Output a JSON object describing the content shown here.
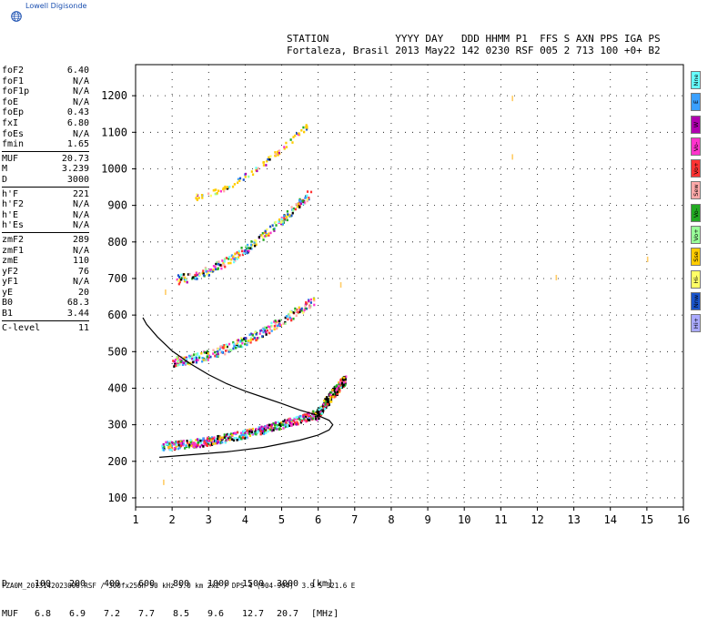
{
  "logo_text": "Lowell Digisonde",
  "header": {
    "line1": "STATION           YYYY DAY   DDD HHMM P1  FFS S AXN PPS IGA PS",
    "line2": "Fortaleza, Brasil 2013 May22 142 0230 RSF 005 2 713 100 +0+ B2"
  },
  "params_groups": [
    [
      [
        "foF2",
        "6.40"
      ],
      [
        "foF1",
        "N/A"
      ],
      [
        "foF1p",
        "N/A"
      ],
      [
        "foE",
        "N/A"
      ],
      [
        "foEp",
        "0.43"
      ],
      [
        "fxI",
        "6.80"
      ],
      [
        "foEs",
        "N/A"
      ],
      [
        "fmin",
        "1.65"
      ]
    ],
    [
      [
        "MUF",
        "20.73"
      ],
      [
        "M",
        "3.239"
      ],
      [
        "D",
        "3000"
      ]
    ],
    [
      [
        "h'F",
        "221"
      ],
      [
        "h'F2",
        "N/A"
      ],
      [
        "h'E",
        "N/A"
      ],
      [
        "h'Es",
        "N/A"
      ]
    ],
    [
      [
        "zmF2",
        "289"
      ],
      [
        "zmF1",
        "N/A"
      ],
      [
        "zmE",
        "110"
      ],
      [
        "yF2",
        "76"
      ],
      [
        "yF1",
        "N/A"
      ],
      [
        "yE",
        "20"
      ],
      [
        "B0",
        "68.3"
      ],
      [
        "B1",
        "3.44"
      ]
    ],
    [
      [
        "C-level",
        "11"
      ]
    ]
  ],
  "legend": [
    {
      "label": "Nne",
      "color": "#66ffff"
    },
    {
      "label": "E",
      "color": "#3aa0ff"
    },
    {
      "label": "W",
      "color": "#b000b0"
    },
    {
      "label": "Vo-",
      "color": "#ff33cc"
    },
    {
      "label": "Vo+",
      "color": "#ff3333"
    },
    {
      "label": "Sew",
      "color": "#ffaaaa"
    },
    {
      "label": "Vo-",
      "color": "#22aa22"
    },
    {
      "label": "Vo+",
      "color": "#99ff99"
    },
    {
      "label": "Sse",
      "color": "#ffcc00"
    },
    {
      "label": "Hi-",
      "color": "#ffff66"
    },
    {
      "label": "Nnw",
      "color": "#1a55cc"
    },
    {
      "label": "Hi+",
      "color": "#aaaaff"
    }
  ],
  "muf_table": {
    "row1_label": "D",
    "row1": [
      "100",
      "200",
      "400",
      "600",
      "800",
      "1000",
      "1500",
      "3000",
      "[km]"
    ],
    "row2_label": "MUF",
    "row2": [
      "6.8",
      "6.9",
      "7.2",
      "7.7",
      "8.5",
      "9.6",
      "12.7",
      "20.7",
      "[MHz]"
    ]
  },
  "footer": "FZA0M_2013142023000.RSF / 300fx256h 50 kHz 5.0 km 2x2 / DPS-4 (904-904)  3.9 S 321.6 E",
  "chart_data": {
    "type": "scatter",
    "xlim": [
      1,
      16
    ],
    "ylim": [
      75,
      1285
    ],
    "x_ticks": [
      1,
      2,
      3,
      4,
      5,
      6,
      7,
      8,
      9,
      10,
      11,
      12,
      13,
      14,
      15,
      16
    ],
    "y_ticks": [
      100,
      200,
      300,
      400,
      500,
      600,
      700,
      800,
      900,
      1000,
      1100,
      1200
    ],
    "grid": true,
    "profile": [
      [
        1.65,
        211
      ],
      [
        2.5,
        218
      ],
      [
        3.5,
        226
      ],
      [
        4.5,
        238
      ],
      [
        5.5,
        258
      ],
      [
        6.0,
        272
      ],
      [
        6.3,
        286
      ],
      [
        6.4,
        300
      ],
      [
        6.3,
        312
      ],
      [
        6.0,
        325
      ],
      [
        5.5,
        340
      ],
      [
        5.0,
        358
      ],
      [
        4.5,
        375
      ],
      [
        4.0,
        392
      ],
      [
        3.5,
        412
      ],
      [
        3.0,
        437
      ],
      [
        2.5,
        467
      ],
      [
        2.0,
        502
      ],
      [
        1.6,
        540
      ],
      [
        1.3,
        575
      ],
      [
        1.2,
        593
      ]
    ],
    "traces": [
      {
        "name": "O-trace 1",
        "x0": 1.7,
        "x1": 6.0,
        "h0": 240,
        "h1": 330,
        "steep": true
      },
      {
        "name": "O-trace 2",
        "x0": 2.0,
        "x1": 5.9,
        "h0": 470,
        "h1": 640
      },
      {
        "name": "O-trace 3",
        "x0": 2.1,
        "x1": 5.8,
        "h0": 695,
        "h1": 935
      },
      {
        "name": "O-trace 4",
        "x0": 2.5,
        "x1": 5.7,
        "h0": 920,
        "h1": 1120
      }
    ],
    "stray_points": [
      [
        11.3,
        1200
      ],
      [
        11.3,
        1040
      ],
      [
        12.5,
        710
      ],
      [
        15.0,
        760
      ],
      [
        1.75,
        150
      ],
      [
        1.8,
        670
      ],
      [
        6.6,
        690
      ]
    ]
  }
}
